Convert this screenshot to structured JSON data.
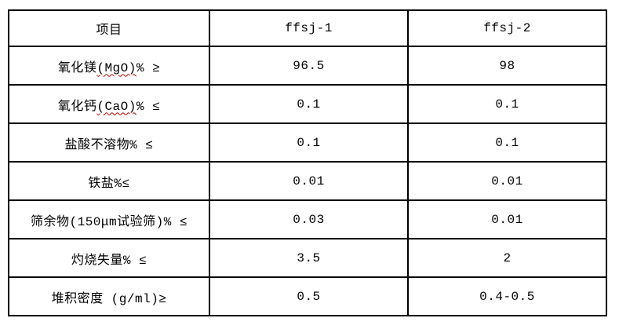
{
  "page": {
    "background_color": "#ffffff",
    "text_color": "#000000",
    "border_color": "#000000",
    "spellcheck_underline_color": "#c00000"
  },
  "chart_data": {
    "type": "table",
    "title": "",
    "columns": [
      "项目",
      "ffsj-1",
      "ffsj-2"
    ],
    "rows": [
      {
        "item_pre": "氧化镁",
        "item_wavy": "(MgO)",
        "item_post": "% ≥",
        "values": [
          "96.5",
          "98"
        ]
      },
      {
        "item_pre": "氧化钙",
        "item_wavy": "(CaO)",
        "item_post": "% ≤",
        "values": [
          "0.1",
          "0.1"
        ]
      },
      {
        "item_pre": "盐酸不溶物% ≤",
        "item_wavy": "",
        "item_post": "",
        "values": [
          "0.1",
          "0.1"
        ]
      },
      {
        "item_pre": "铁盐%≤",
        "item_wavy": "",
        "item_post": "",
        "values": [
          "0.01",
          "0.01"
        ]
      },
      {
        "item_pre": "筛余物(150μm试验筛)% ≤",
        "item_wavy": "",
        "item_post": "",
        "values": [
          "0.03",
          "0.01"
        ]
      },
      {
        "item_pre": "灼烧失量% ≤",
        "item_wavy": "",
        "item_post": "",
        "values": [
          "3.5",
          "2"
        ]
      },
      {
        "item_pre": "堆积密度 (g/ml)≥",
        "item_wavy": "",
        "item_post": "",
        "values": [
          "0.5",
          "0.4-0.5"
        ]
      }
    ],
    "layout": {
      "grid": "all-borders",
      "header_row": true,
      "cell_alignment": "center"
    }
  }
}
